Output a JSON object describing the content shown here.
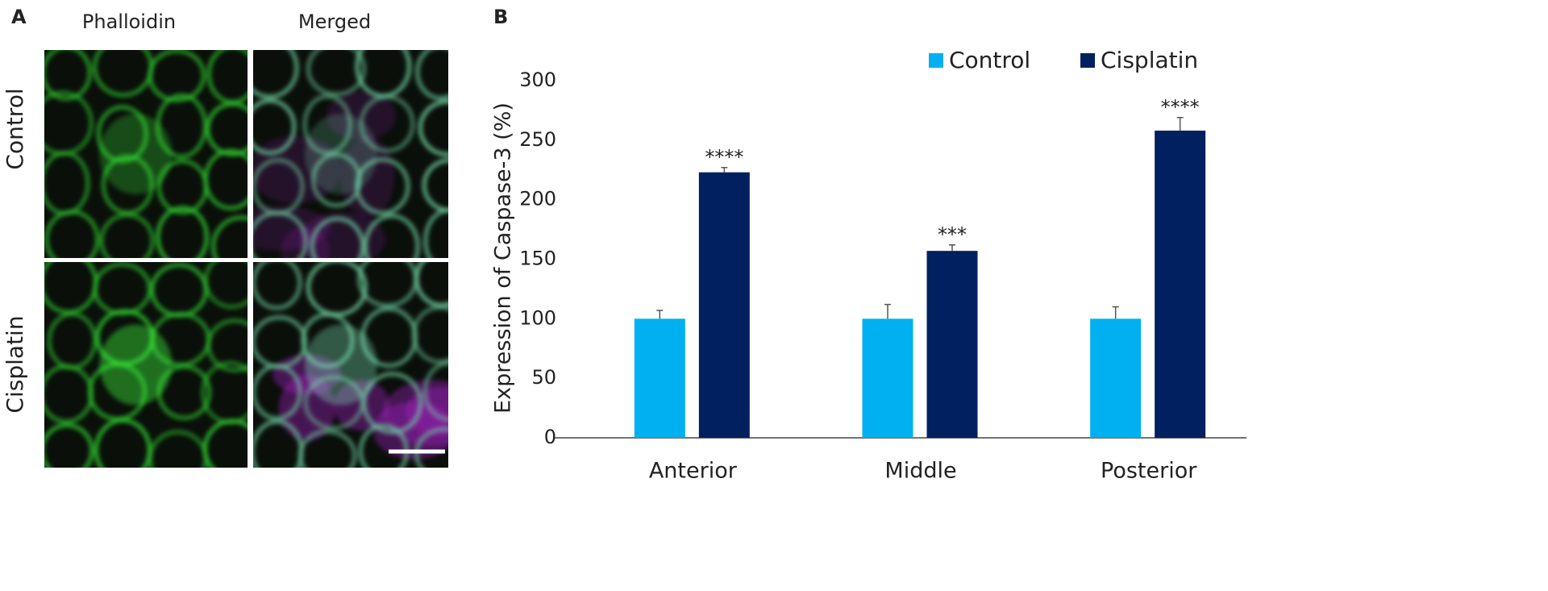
{
  "panel_a": {
    "label": "A",
    "columns": [
      "Phalloidin",
      "Merged"
    ],
    "rows": [
      "Control",
      "Cisplatin"
    ]
  },
  "chart_data": {
    "type": "bar",
    "panel_label": "B",
    "y_label": "Expression of Caspase-3 (%)",
    "categories": [
      "Anterior",
      "Middle",
      "Posterior"
    ],
    "series": [
      {
        "name": "Control",
        "color": "#00b0f0",
        "values": [
          100,
          100,
          100
        ],
        "errors": [
          7,
          12,
          10
        ]
      },
      {
        "name": "Cisplatin",
        "color": "#002060",
        "values": [
          223,
          157,
          258
        ],
        "errors": [
          4,
          5,
          11
        ],
        "significance": [
          "****",
          "***",
          "****"
        ]
      }
    ],
    "ylim": [
      0,
      300
    ],
    "yticks": [
      0,
      50,
      100,
      150,
      200,
      250,
      300
    ],
    "grid": false,
    "legend": "top"
  }
}
